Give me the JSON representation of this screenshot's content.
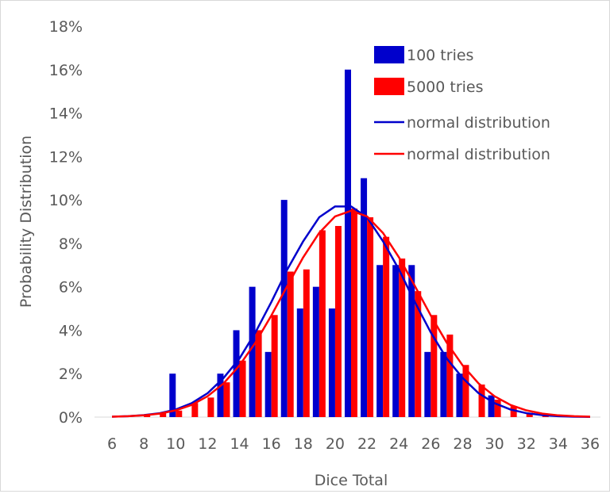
{
  "chart_data": {
    "type": "bar",
    "title": "",
    "xlabel": "Dice Total",
    "ylabel": "Probability Distribution",
    "xlim": [
      6,
      36
    ],
    "ylim": [
      0,
      18
    ],
    "x_ticks": [
      "6",
      "8",
      "10",
      "12",
      "14",
      "16",
      "18",
      "20",
      "22",
      "24",
      "26",
      "28",
      "30",
      "32",
      "34",
      "36"
    ],
    "y_ticks": [
      "0%",
      "2%",
      "4%",
      "6%",
      "8%",
      "10%",
      "12%",
      "14%",
      "16%",
      "18%"
    ],
    "grid": false,
    "legend_position": "top-right",
    "series": [
      {
        "name": "100 tries",
        "kind": "bar",
        "color": "#0000cc",
        "x": [
          10,
          13,
          14,
          15,
          16,
          17,
          18,
          19,
          20,
          21,
          22,
          23,
          24,
          25,
          26,
          27,
          28,
          30
        ],
        "values": [
          2,
          2,
          4,
          6,
          3,
          10,
          5,
          6,
          5,
          16,
          11,
          7,
          7,
          7,
          3,
          3,
          2,
          1
        ]
      },
      {
        "name": "5000 tries",
        "kind": "bar",
        "color": "#ff0000",
        "x": [
          8,
          9,
          10,
          11,
          12,
          13,
          14,
          15,
          16,
          17,
          18,
          19,
          20,
          21,
          22,
          23,
          24,
          25,
          26,
          27,
          28,
          29,
          30,
          31,
          32,
          33
        ],
        "values": [
          0.1,
          0.2,
          0.3,
          0.65,
          0.9,
          1.6,
          2.6,
          4.0,
          4.7,
          6.7,
          6.8,
          8.6,
          8.8,
          9.6,
          9.2,
          8.3,
          7.3,
          5.8,
          4.7,
          3.8,
          2.4,
          1.5,
          0.8,
          0.5,
          0.2,
          0.1
        ]
      },
      {
        "name": "normal distribution",
        "kind": "line",
        "color": "#0000cc",
        "x": [
          6,
          7,
          8,
          9,
          10,
          11,
          12,
          13,
          14,
          15,
          16,
          17,
          18,
          19,
          20,
          21,
          22,
          23,
          24,
          25,
          26,
          27,
          28,
          29,
          30,
          31,
          32,
          33,
          34,
          35,
          36
        ],
        "values": [
          0.02,
          0.04,
          0.09,
          0.18,
          0.35,
          0.64,
          1.1,
          1.8,
          2.7,
          3.9,
          5.3,
          6.8,
          8.1,
          9.2,
          9.7,
          9.7,
          9.2,
          8.1,
          6.8,
          5.3,
          3.9,
          2.7,
          1.8,
          1.1,
          0.64,
          0.35,
          0.18,
          0.09,
          0.04,
          0.02,
          0.01
        ]
      },
      {
        "name": "normal distribution",
        "kind": "line",
        "color": "#ff0000",
        "x": [
          6,
          7,
          8,
          9,
          10,
          11,
          12,
          13,
          14,
          15,
          16,
          17,
          18,
          19,
          20,
          21,
          22,
          23,
          24,
          25,
          26,
          27,
          28,
          29,
          30,
          31,
          32,
          33,
          34,
          35,
          36
        ],
        "values": [
          0.02,
          0.04,
          0.08,
          0.16,
          0.31,
          0.56,
          0.96,
          1.55,
          2.38,
          3.43,
          4.68,
          6.04,
          7.36,
          8.48,
          9.24,
          9.5,
          9.24,
          8.48,
          7.36,
          6.04,
          4.68,
          3.43,
          2.38,
          1.55,
          0.96,
          0.56,
          0.31,
          0.16,
          0.08,
          0.04,
          0.02
        ]
      }
    ]
  }
}
